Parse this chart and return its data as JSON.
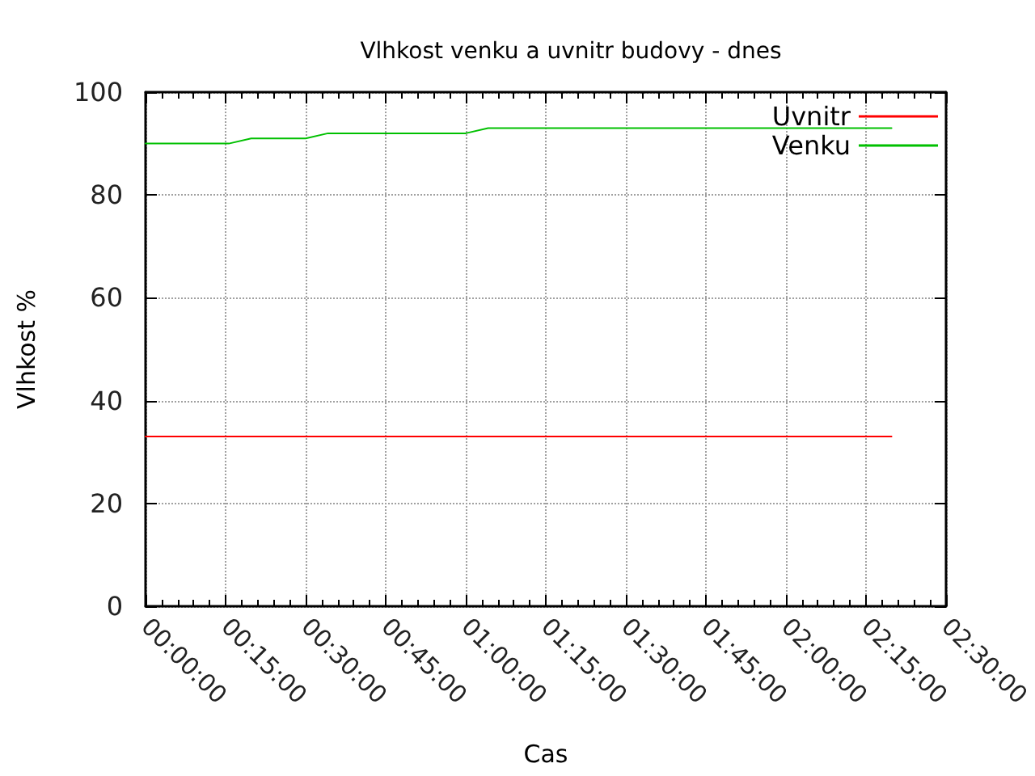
{
  "chart_data": {
    "type": "line",
    "title": "Vlhkost venku a uvnitr budovy - dnes",
    "xlabel": "Cas",
    "ylabel": "Vlhkost %",
    "xlim": [
      0,
      2.5
    ],
    "xticks": [
      {
        "value": 0,
        "label": "00:00:00"
      },
      {
        "value": 0.25,
        "label": "00:15:00"
      },
      {
        "value": 0.5,
        "label": "00:30:00"
      },
      {
        "value": 0.75,
        "label": "00:45:00"
      },
      {
        "value": 1,
        "label": "01:00:00"
      },
      {
        "value": 1.25,
        "label": "01:15:00"
      },
      {
        "value": 1.5,
        "label": "01:30:00"
      },
      {
        "value": 1.75,
        "label": "01:45:00"
      },
      {
        "value": 2,
        "label": "02:00:00"
      },
      {
        "value": 2.25,
        "label": "02:15:00"
      },
      {
        "value": 2.5,
        "label": "02:30:00"
      }
    ],
    "ylim": [
      0,
      100
    ],
    "yticks": [
      0,
      20,
      40,
      60,
      80,
      100
    ],
    "grid": true,
    "legend": "top right",
    "marker": "none",
    "line_style": "solid",
    "series": [
      {
        "name": "Uvnitr",
        "color": "#ff0000",
        "x": [
          0,
          2.33
        ],
        "values": [
          33,
          33
        ]
      },
      {
        "name": "Venku",
        "color": "#00c000",
        "x": [
          0,
          0.26,
          0.33,
          0.5,
          0.57,
          1.0,
          1.07,
          2.33
        ],
        "values": [
          90,
          90,
          91,
          91,
          92,
          92,
          93,
          93
        ]
      }
    ]
  }
}
